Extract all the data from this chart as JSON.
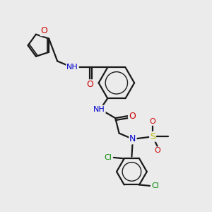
{
  "bg_color": "#ebebeb",
  "bond_color": "#1a1a1a",
  "atom_colors": {
    "O": "#cc0000",
    "N": "#0000cc",
    "S": "#bbbb00",
    "Cl": "#008800",
    "C": "#1a1a1a",
    "H": "#4a8a8a"
  },
  "figsize": [
    3.0,
    3.0
  ],
  "dpi": 100
}
